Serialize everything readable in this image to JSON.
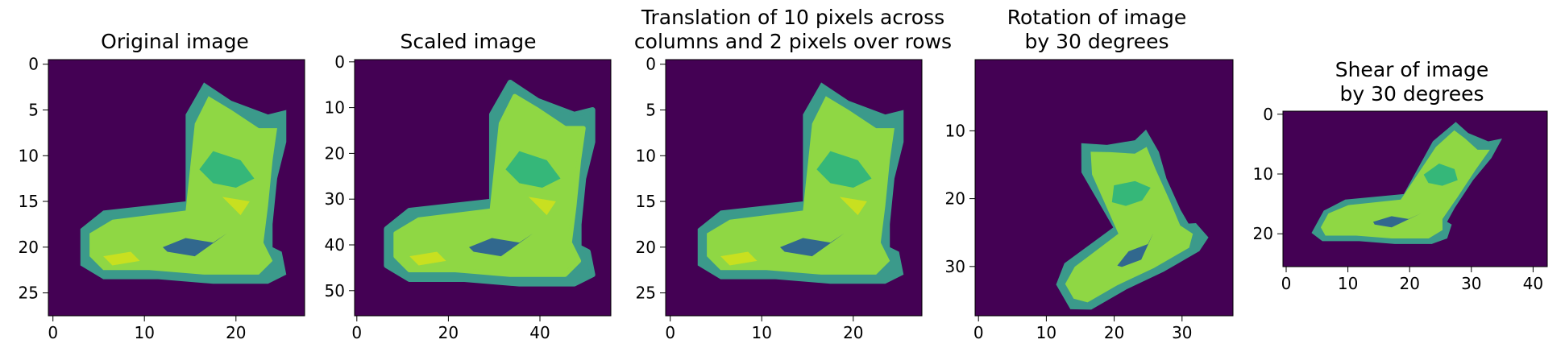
{
  "figure": {
    "colormap": "viridis",
    "background": "#440154",
    "panels": [
      {
        "title_lines": [
          "Original image"
        ],
        "grid": [
          28,
          28
        ],
        "transform": "original",
        "xticks": [
          0,
          10,
          20
        ],
        "yticks": [
          0,
          5,
          10,
          15,
          20,
          25
        ]
      },
      {
        "title_lines": [
          "Scaled image"
        ],
        "grid": [
          56,
          56
        ],
        "transform": "scaled",
        "xticks": [
          0,
          20,
          40
        ],
        "yticks": [
          0,
          10,
          20,
          30,
          40,
          50
        ]
      },
      {
        "title_lines": [
          "Translation of 10 pixels across",
          "columns and 2 pixels over rows"
        ],
        "grid": [
          28,
          28
        ],
        "transform": "translation",
        "xticks": [
          0,
          10,
          20
        ],
        "yticks": [
          0,
          5,
          10,
          15,
          20,
          25
        ]
      },
      {
        "title_lines": [
          "Rotation of image",
          "by 30 degrees"
        ],
        "grid": [
          38,
          38
        ],
        "transform": "rotation",
        "xticks": [
          0,
          10,
          20,
          30
        ],
        "yticks": [
          10,
          20,
          30
        ]
      },
      {
        "title_lines": [
          "Shear of image",
          "by 30 degrees"
        ],
        "grid": [
          42,
          26
        ],
        "transform": "shear",
        "xticks": [
          0,
          10,
          20,
          30,
          40
        ],
        "yticks": [
          0,
          10,
          20
        ]
      }
    ]
  }
}
